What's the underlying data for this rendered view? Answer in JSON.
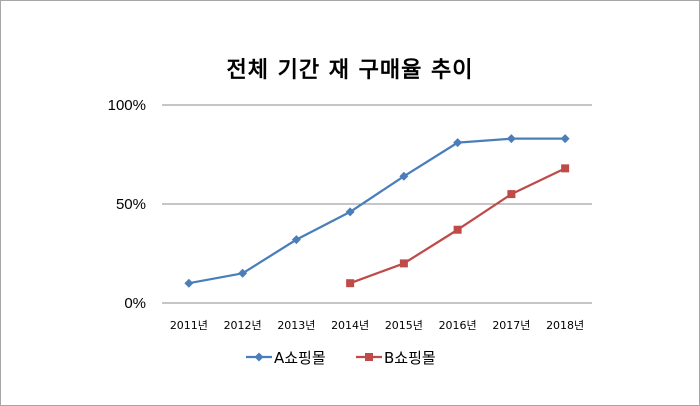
{
  "chart_data": {
    "type": "line",
    "title": "전체 기간 재 구매율 추이",
    "categories": [
      "2011년",
      "2012년",
      "2013년",
      "2014년",
      "2015년",
      "2016년",
      "2017년",
      "2018년"
    ],
    "ylim": [
      0,
      100
    ],
    "yticks": [
      "0%",
      "50%",
      "100%"
    ],
    "grid": true,
    "legend_position": "bottom",
    "series": [
      {
        "name": "A쇼핑몰",
        "color": "#4a7ebb",
        "marker": "diamond",
        "values": [
          10,
          15,
          32,
          46,
          64,
          81,
          83,
          83
        ]
      },
      {
        "name": "B쇼핑몰",
        "color": "#be4b48",
        "marker": "square",
        "values": [
          null,
          null,
          null,
          10,
          20,
          37,
          55,
          68
        ]
      }
    ]
  }
}
